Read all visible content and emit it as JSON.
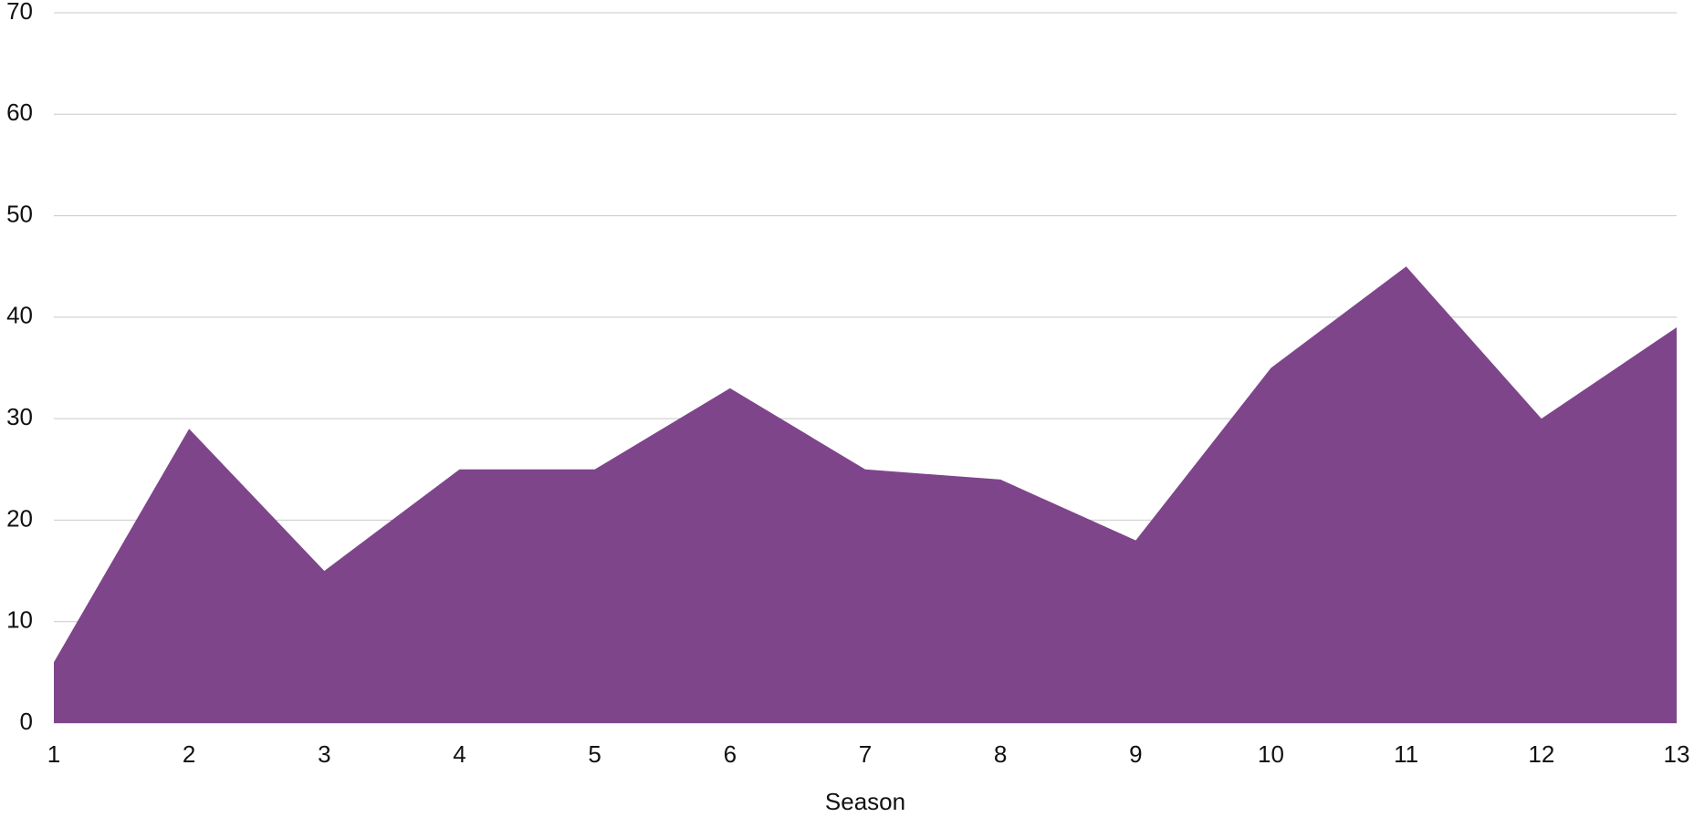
{
  "chart_data": {
    "type": "area",
    "x_label": "Season",
    "x": [
      1,
      2,
      3,
      4,
      5,
      6,
      7,
      8,
      9,
      10,
      11,
      12,
      13
    ],
    "values": [
      6,
      29,
      15,
      25,
      25,
      33,
      25,
      24,
      18,
      35,
      45,
      30,
      39
    ],
    "color": "#7e458b",
    "xlim": [
      1,
      13
    ],
    "xticks": [
      1,
      2,
      3,
      4,
      5,
      6,
      7,
      8,
      9,
      10,
      11,
      12,
      13
    ],
    "ylim": [
      0,
      70
    ],
    "yticks": [
      0,
      10,
      20,
      30,
      40,
      50,
      60,
      70
    ],
    "grid": true
  }
}
